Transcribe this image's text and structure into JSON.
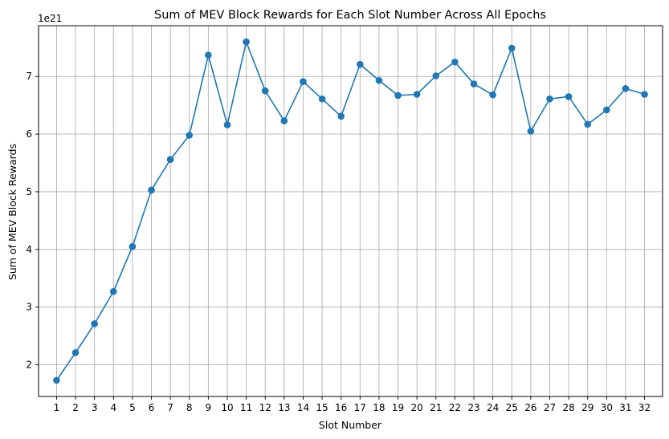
{
  "chart_data": {
    "type": "line",
    "title": "Sum of MEV Block Rewards for Each Slot Number Across All Epochs",
    "xlabel": "Slot Number",
    "ylabel": "Sum of MEV Block Rewards",
    "y_offset_label": "1e21",
    "y_multiplier": 1e+21,
    "x": [
      1,
      2,
      3,
      4,
      5,
      6,
      7,
      8,
      9,
      10,
      11,
      12,
      13,
      14,
      15,
      16,
      17,
      18,
      19,
      20,
      21,
      22,
      23,
      24,
      25,
      26,
      27,
      28,
      29,
      30,
      31,
      32
    ],
    "series": [
      {
        "color": "#1f77b4",
        "values": [
          1.73,
          2.21,
          2.71,
          3.27,
          4.05,
          5.03,
          5.56,
          5.98,
          7.37,
          6.16,
          7.6,
          6.75,
          6.23,
          6.91,
          6.61,
          6.31,
          7.21,
          6.93,
          6.67,
          6.69,
          7.01,
          7.25,
          6.87,
          6.68,
          7.49,
          6.05,
          6.61,
          6.65,
          6.17,
          6.42,
          6.79,
          6.69
        ]
      }
    ],
    "xlim": [
      0.05,
      32.95
    ],
    "ylim": [
      1.45,
      7.88
    ],
    "yticks": [
      2,
      3,
      4,
      5,
      6,
      7
    ],
    "grid": true,
    "grid_color": "#b0b0b0"
  }
}
